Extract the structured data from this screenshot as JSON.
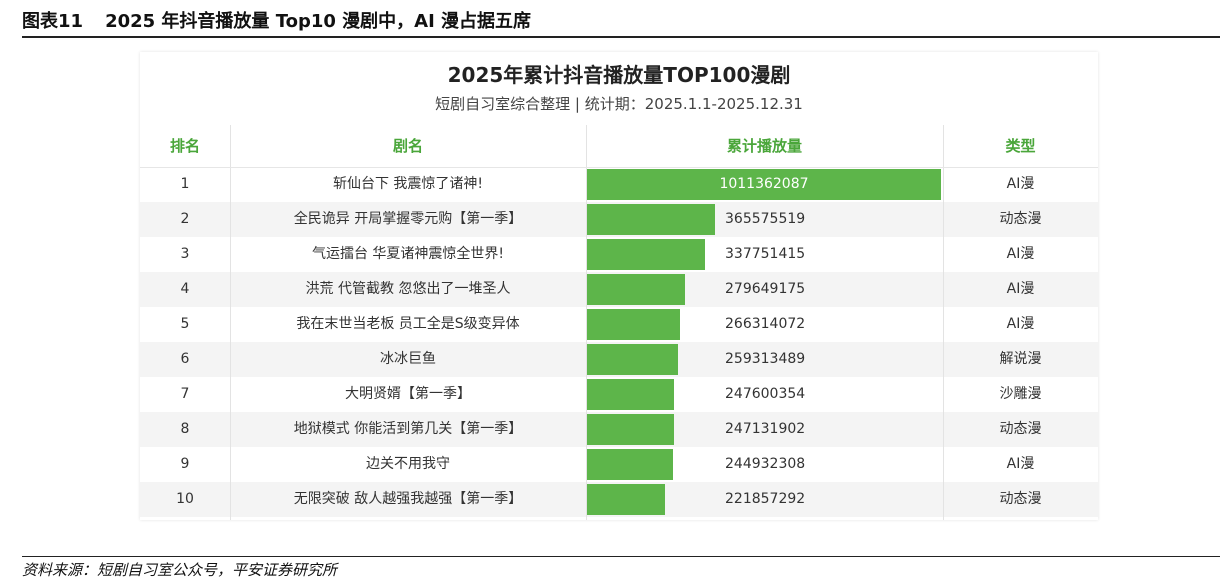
{
  "figure": {
    "number": "图表11",
    "caption": "2025 年抖音播放量 Top10 漫剧中，AI 漫占据五席",
    "source": "资料来源：短剧自习室公众号，平安证券研究所"
  },
  "chart_data": {
    "type": "table",
    "title": "2025年累计抖音播放量TOP100漫剧",
    "subtitle": "短剧自习室综合整理 | 统计期：2025.1.1-2025.12.31",
    "columns": [
      "排名",
      "剧名",
      "累计播放量",
      "类型"
    ],
    "rows": [
      {
        "rank": "1",
        "name": "斩仙台下 我震惊了诸神!",
        "plays": "1011362087",
        "value": 1011362087,
        "type": "AI漫"
      },
      {
        "rank": "2",
        "name": "全民诡异 开局掌握零元购【第一季】",
        "plays": "365575519",
        "value": 365575519,
        "type": "动态漫"
      },
      {
        "rank": "3",
        "name": "气运擂台 华夏诸神震惊全世界!",
        "plays": "337751415",
        "value": 337751415,
        "type": "AI漫"
      },
      {
        "rank": "4",
        "name": "洪荒 代管截教 忽悠出了一堆圣人",
        "plays": "279649175",
        "value": 279649175,
        "type": "AI漫"
      },
      {
        "rank": "5",
        "name": "我在末世当老板 员工全是S级变异体",
        "plays": "266314072",
        "value": 266314072,
        "type": "AI漫"
      },
      {
        "rank": "6",
        "name": "冰冰巨鱼",
        "plays": "259313489",
        "value": 259313489,
        "type": "解说漫"
      },
      {
        "rank": "7",
        "name": "大明贤婿【第一季】",
        "plays": "247600354",
        "value": 247600354,
        "type": "沙雕漫"
      },
      {
        "rank": "8",
        "name": "地狱模式 你能活到第几关【第一季】",
        "plays": "247131902",
        "value": 247131902,
        "type": "动态漫"
      },
      {
        "rank": "9",
        "name": "边关不用我守",
        "plays": "244932308",
        "value": 244932308,
        "type": "AI漫"
      },
      {
        "rank": "10",
        "name": "无限突破 敌人越强我越强【第一季】",
        "plays": "221857292",
        "value": 221857292,
        "type": "动态漫"
      }
    ],
    "bar_max": 1011362087,
    "colors": {
      "bar": "#5db54a",
      "header_text": "#4aa63a",
      "stripe": "#f4f4f4"
    }
  }
}
